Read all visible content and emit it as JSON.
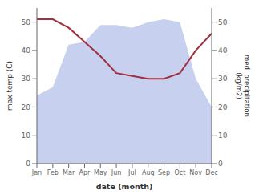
{
  "chart_data": {
    "type": "area",
    "categories": [
      "Jan",
      "Feb",
      "Mar",
      "Apr",
      "May",
      "Jun",
      "Jul",
      "Aug",
      "Sep",
      "Oct",
      "Nov",
      "Dec"
    ],
    "xlabel": "date (month)",
    "ylabel": "max temp (C)",
    "y2label": "med. precipitation\n(kg/m2)",
    "ylim": [
      0,
      55
    ],
    "yticks": [
      0,
      10,
      20,
      30,
      40,
      50
    ],
    "y2lim": [
      0,
      55
    ],
    "y2ticks": [
      0,
      10,
      20,
      30,
      40,
      50
    ],
    "grid": false,
    "series": [
      {
        "type": "area",
        "color": "#c8d0f0",
        "values": [
          24,
          27,
          42,
          43,
          49,
          49,
          48,
          50,
          51,
          50,
          30,
          20
        ]
      },
      {
        "type": "line",
        "color": "#a03040",
        "axis": "y2",
        "values": [
          51,
          51,
          48,
          43,
          38,
          32,
          31,
          30,
          30,
          32,
          40,
          46
        ]
      }
    ]
  }
}
